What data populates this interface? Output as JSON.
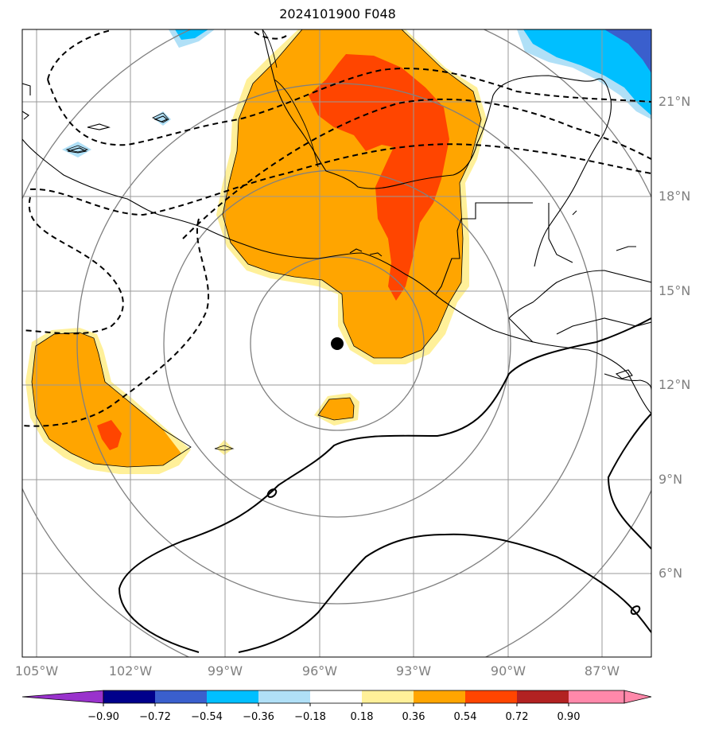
{
  "title": "2024101900 F048",
  "lat_labels": [
    "21°N",
    "18°N",
    "15°N",
    "12°N",
    "9°N",
    "6°N"
  ],
  "lon_labels": [
    "105°W",
    "102°W",
    "99°W",
    "96°W",
    "93°W",
    "90°W",
    "87°W"
  ],
  "colorbar": {
    "ticks": [
      "−0.90",
      "−0.72",
      "−0.54",
      "−0.36",
      "−0.18",
      "0.18",
      "0.36",
      "0.54",
      "0.72",
      "0.90"
    ],
    "colors": [
      "#9932cc",
      "#00008b",
      "#3a5fcd",
      "#00bfff",
      "#b0e0f7",
      "#ffffff",
      "#fff099",
      "#ffa500",
      "#ff4500",
      "#b22222",
      "#ff88aa"
    ]
  },
  "colors": {
    "gridline": "#999999",
    "range_ring": "#808080",
    "coastline": "#000000",
    "storm_center": "#000000"
  },
  "map": {
    "extent": {
      "lon": [
        -105.4,
        -85.4
      ],
      "lat": [
        3.5,
        23.5
      ]
    },
    "storm_center": {
      "lon": -95.5,
      "lat": 13.3
    }
  }
}
